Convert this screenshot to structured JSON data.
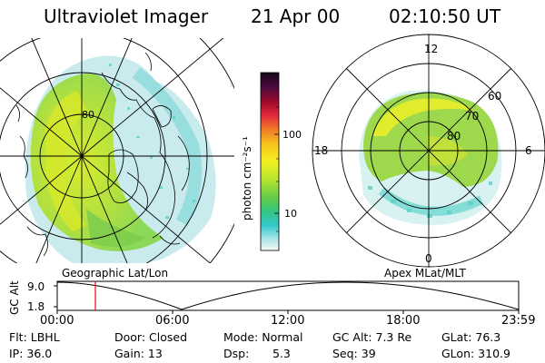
{
  "header": {
    "instrument": "Ultraviolet Imager",
    "date": "21 Apr 00",
    "time": "02:10:50 UT"
  },
  "left_panel": {
    "caption": "Geographic Lat/Lon",
    "lat_label": "80"
  },
  "colorbar": {
    "label": "photon cm⁻²s⁻¹",
    "ticks": [
      "100",
      "10"
    ],
    "colors": [
      "#1a0a1a",
      "#5a0a3a",
      "#a00a2a",
      "#e0283a",
      "#f0782a",
      "#f8c020",
      "#f0f020",
      "#c0e830",
      "#80d040",
      "#40c860",
      "#30c8c8",
      "#90e0e0",
      "#e0f0f0"
    ]
  },
  "right_panel": {
    "caption": "Apex MLat/MLT",
    "mlt_labels": {
      "top": "12",
      "left": "18",
      "right": "6",
      "bottom": "0"
    },
    "lat_labels": [
      "60",
      "70",
      "80"
    ]
  },
  "altitude_plot": {
    "ylabel": "GC Alt",
    "yticks": [
      "9.0",
      "1.8"
    ],
    "xticks": [
      "00:00",
      "06:00",
      "12:00",
      "18:00",
      "23:59"
    ],
    "marker_color": "#ff0000"
  },
  "info": {
    "flt": "Flt: LBHL",
    "ip": "IP: 36.0",
    "door": "Door: Closed",
    "gain": "Gain: 13",
    "mode": "Mode: Normal",
    "dsp_label": "Dsp:",
    "dsp_value": "5.3",
    "gc_alt": "GC Alt: 7.3 Re",
    "seq": "Seq: 39",
    "glat": "GLat: 76.3",
    "glon": "GLon: 310.9"
  }
}
